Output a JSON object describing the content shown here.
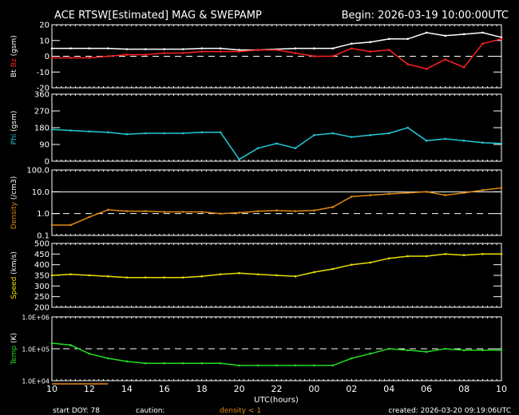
{
  "title": "ACE RTSW[Estimated] MAG & SWEPAMP",
  "begin": "Begin: 2026-03-19 10:00:00UTC",
  "footer": {
    "start_doy": "start DOY:  78",
    "caution": "caution:",
    "density_note": "density < 1",
    "created": "created: 2026-03-20 09:19:06UTC"
  },
  "colors": {
    "bt": "#ffffff",
    "bz": "#ff0000",
    "phi": "#22c8d8",
    "density": "#e08a10",
    "speed": "#e8e000",
    "temp": "#22dd22"
  },
  "chart_data": {
    "type": "line",
    "xlabel": "UTC(hours)",
    "x_ticks": [
      "10",
      "12",
      "14",
      "16",
      "18",
      "20",
      "22",
      "00",
      "02",
      "04",
      "06",
      "08",
      "10"
    ],
    "x": [
      0,
      1,
      2,
      3,
      4,
      5,
      6,
      7,
      8,
      9,
      10,
      11,
      12,
      13,
      14,
      15,
      16,
      17,
      18,
      19,
      20,
      21,
      22,
      23,
      24
    ],
    "panels": [
      {
        "id": "mag",
        "ylabel_parts": [
          "Bt",
          "Bz",
          "(gsm)"
        ],
        "scale": "linear",
        "ylim": [
          -20,
          20
        ],
        "ticks": [
          "20",
          "10",
          "0",
          "-10",
          "-20"
        ],
        "tick_values": [
          20,
          10,
          0,
          -10,
          -20
        ],
        "dashed": [
          0
        ],
        "series": [
          {
            "name": "Bt",
            "color": "#ffffff",
            "values": [
              5,
              5,
              5,
              5,
              4.5,
              4.5,
              4.5,
              4.5,
              5,
              5,
              4,
              4,
              4.5,
              5,
              5,
              5,
              8,
              9,
              11,
              11,
              15,
              13,
              14,
              15,
              12
            ]
          },
          {
            "name": "Bz",
            "color": "#ff2020",
            "values": [
              -1,
              -1,
              -1,
              0,
              1,
              1,
              2,
              2,
              3,
              3,
              3,
              4,
              4,
              2,
              0,
              0,
              5,
              3,
              4,
              -5,
              -8,
              -2,
              -7,
              8,
              11
            ]
          }
        ]
      },
      {
        "id": "phi",
        "ylabel_parts": [
          "Phi",
          "(gsm)"
        ],
        "scale": "linear",
        "ylim": [
          0,
          360
        ],
        "ticks": [
          "360",
          "270",
          "180",
          "90",
          "0"
        ],
        "tick_values": [
          360,
          270,
          180,
          90,
          0
        ],
        "dashed": [],
        "series": [
          {
            "name": "Phi",
            "color": "#22c8d8",
            "values": [
              170,
              165,
              160,
              155,
              145,
              150,
              150,
              150,
              155,
              155,
              10,
              70,
              95,
              70,
              140,
              150,
              130,
              140,
              150,
              180,
              110,
              120,
              110,
              100,
              95
            ]
          }
        ]
      },
      {
        "id": "density",
        "ylabel_parts": [
          "Density",
          "(/cm3)"
        ],
        "scale": "log",
        "ylim": [
          0.1,
          100
        ],
        "ticks": [
          "100.0",
          "10.0",
          "1.0",
          "0.1"
        ],
        "tick_values": [
          100,
          10,
          1,
          0.1
        ],
        "dashed": [
          1
        ],
        "solid": [
          10
        ],
        "series": [
          {
            "name": "Density",
            "color": "#e08a10",
            "values": [
              0.3,
              0.3,
              0.7,
              1.5,
              1.3,
              1.3,
              1.2,
              1.2,
              1.2,
              1.0,
              1.1,
              1.3,
              1.4,
              1.3,
              1.4,
              2,
              6,
              7,
              8,
              9,
              10,
              7,
              9,
              12,
              15
            ]
          }
        ]
      },
      {
        "id": "speed",
        "ylabel_parts": [
          "Speed",
          "(km/s)"
        ],
        "scale": "linear",
        "ylim": [
          200,
          500
        ],
        "ticks": [
          "500",
          "450",
          "400",
          "350",
          "300",
          "250",
          "200"
        ],
        "tick_values": [
          500,
          450,
          400,
          350,
          300,
          250,
          200
        ],
        "dashed": [],
        "series": [
          {
            "name": "Speed",
            "color": "#e8e000",
            "values": [
              350,
              355,
              350,
              345,
              340,
              340,
              340,
              340,
              345,
              355,
              360,
              355,
              350,
              345,
              365,
              380,
              400,
              410,
              430,
              440,
              440,
              450,
              445,
              450,
              450
            ]
          }
        ]
      },
      {
        "id": "temp",
        "ylabel_parts": [
          "Temp",
          "(K)"
        ],
        "scale": "log",
        "ylim": [
          10000,
          1000000
        ],
        "ticks": [
          "1.0E+06",
          "1.0E+05",
          "1.0E+04"
        ],
        "tick_values": [
          1000000,
          100000,
          10000
        ],
        "dashed": [
          100000
        ],
        "series": [
          {
            "name": "Temp",
            "color": "#22dd22",
            "values": [
              150000,
              130000,
              70000,
              50000,
              40000,
              35000,
              35000,
              35000,
              35000,
              35000,
              30000,
              30000,
              30000,
              30000,
              30000,
              30000,
              50000,
              70000,
              100000,
              90000,
              80000,
              100000,
              90000,
              90000,
              90000
            ]
          }
        ]
      }
    ]
  }
}
